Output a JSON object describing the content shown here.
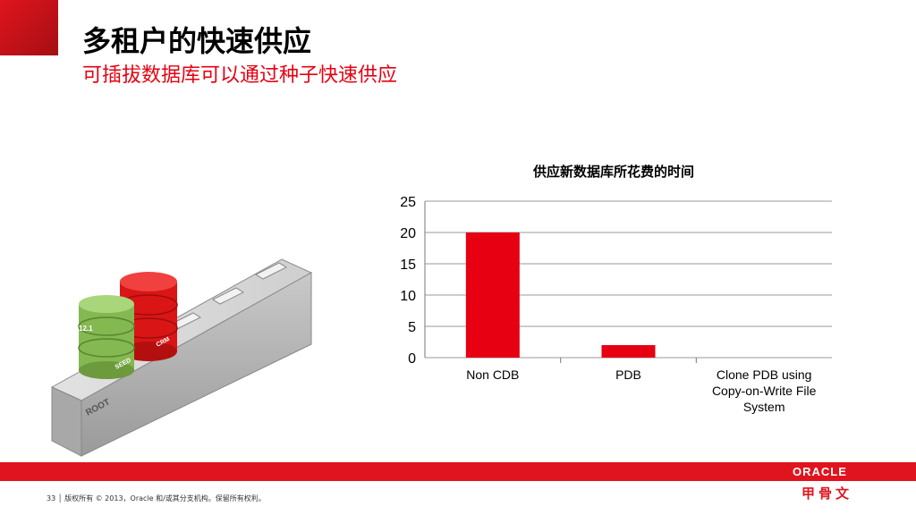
{
  "slide": {
    "title": "多租户的快速供应",
    "subtitle": "可插拔数据库可以通过种子快速供应"
  },
  "illustration": {
    "root_label": "ROOT",
    "seed_label": "SEED",
    "version_label": "12.1",
    "crm_label": "CRM",
    "colors": {
      "green_db": "#8fc45a",
      "red_db": "#e81c1c",
      "block": "#b8b8b8"
    }
  },
  "chart_data": {
    "type": "bar",
    "title": "供应新数据库所花费的时间",
    "categories": [
      "Non CDB",
      "PDB",
      "Clone PDB using Copy-on-Write File System"
    ],
    "category_lines": [
      [
        "Non CDB"
      ],
      [
        "PDB"
      ],
      [
        "Clone PDB using",
        "Copy-on-Write File",
        "System"
      ]
    ],
    "values": [
      20,
      2,
      0
    ],
    "yticks": [
      "0",
      "5",
      "10",
      "15",
      "20",
      "25"
    ],
    "ylim": [
      0,
      25
    ],
    "grid": true,
    "bar_color": "#e60012"
  },
  "footer": {
    "page_number": "33",
    "copyright": "版权所有 © 2013，Oracle 和/或其分支机构。保留所有权利。"
  },
  "brand": {
    "logo_text": "ORACLE",
    "logo_cn": "甲骨文"
  }
}
